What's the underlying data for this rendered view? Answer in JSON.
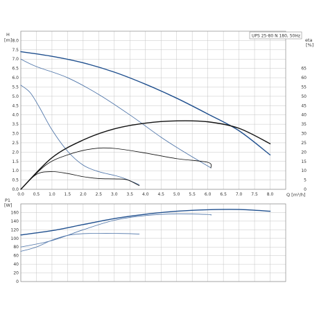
{
  "colors": {
    "blue_thick": "#1f4f8e",
    "blue_thin": "#4c73a8",
    "black": "#111111",
    "grid": "#c4c4c4",
    "frame": "#8a8a8a"
  },
  "chart_data": [
    {
      "type": "line",
      "title": "UPS 25-80 N 180, 50Hz",
      "ylabel_left": "H",
      "ylabel_left_unit": "[m]",
      "ylabel_right": "eta",
      "ylabel_right_unit": "[%]",
      "xlabel": "Q [m³/h]",
      "grid": true,
      "xlim": [
        0,
        8.5
      ],
      "ylim": [
        0,
        8.5
      ],
      "y2lim": [
        0,
        85
      ],
      "x_ticks": [
        "0.0",
        "0.5",
        "1.0",
        "1.5",
        "2.0",
        "2.5",
        "3.0",
        "3.5",
        "4.0",
        "4.5",
        "5.0",
        "5.5",
        "6.0",
        "6.5",
        "7.0",
        "7.5",
        "8.0"
      ],
      "y_ticks": [
        "0.0",
        "0.5",
        "1.0",
        "1.5",
        "2.0",
        "2.5",
        "3.0",
        "3.5",
        "4.0",
        "4.5",
        "5.0",
        "5.5",
        "6.0",
        "6.5",
        "7.0",
        "7.5",
        "8.0"
      ],
      "y2_ticks": [
        "0",
        "5",
        "10",
        "15",
        "20",
        "25",
        "30",
        "35",
        "40",
        "45",
        "50",
        "55",
        "60",
        "65"
      ],
      "series": [
        {
          "role": "head",
          "speed": 3,
          "color_key": "blue_thick",
          "width": 1.4,
          "points": [
            [
              0,
              7.4
            ],
            [
              1,
              7.15
            ],
            [
              2,
              6.8
            ],
            [
              3,
              6.3
            ],
            [
              4,
              5.65
            ],
            [
              5,
              4.9
            ],
            [
              6,
              4.05
            ],
            [
              7,
              3.15
            ],
            [
              8,
              1.85
            ]
          ]
        },
        {
          "role": "head",
          "speed": 2,
          "color_key": "blue_thin",
          "width": 0.85,
          "points": [
            [
              0,
              7.0
            ],
            [
              0.5,
              6.6
            ],
            [
              1.5,
              6.0
            ],
            [
              2.5,
              5.1
            ],
            [
              3.5,
              4.0
            ],
            [
              4.5,
              2.8
            ],
            [
              5.2,
              2.05
            ],
            [
              6.1,
              1.15
            ]
          ]
        },
        {
          "role": "head",
          "speed": 1,
          "color_key": "blue_thin",
          "width": 0.85,
          "points": [
            [
              0,
              5.6
            ],
            [
              0.3,
              5.2
            ],
            [
              0.6,
              4.4
            ],
            [
              1.0,
              3.2
            ],
            [
              1.5,
              2.05
            ],
            [
              2.0,
              1.3
            ],
            [
              2.5,
              0.95
            ],
            [
              3.0,
              0.75
            ],
            [
              3.3,
              0.6
            ],
            [
              3.8,
              0.25
            ]
          ]
        },
        {
          "role": "efficiency",
          "speed": 3,
          "color_key": "black",
          "width": 1.4,
          "points": [
            [
              0,
              0
            ],
            [
              1,
              17
            ],
            [
              2,
              26.5
            ],
            [
              3,
              32.5
            ],
            [
              4,
              35.6
            ],
            [
              5,
              36.8
            ],
            [
              6,
              36.3
            ],
            [
              7,
              32.8
            ],
            [
              8,
              24.5
            ]
          ]
        },
        {
          "role": "efficiency",
          "speed": 2,
          "color_key": "black",
          "width": 0.85,
          "points": [
            [
              0,
              0
            ],
            [
              0.8,
              13
            ],
            [
              1.5,
              18.5
            ],
            [
              2.3,
              21.8
            ],
            [
              3.0,
              22
            ],
            [
              4.0,
              19.5
            ],
            [
              5.0,
              16.5
            ],
            [
              6.0,
              14.5
            ],
            [
              6.1,
              11.5
            ]
          ]
        },
        {
          "role": "efficiency",
          "speed": 1,
          "color_key": "black",
          "width": 0.85,
          "points": [
            [
              0,
              0
            ],
            [
              0.5,
              8
            ],
            [
              1.0,
              9.5
            ],
            [
              1.5,
              8.5
            ],
            [
              2.0,
              6.8
            ],
            [
              2.5,
              5.8
            ],
            [
              3.0,
              5.6
            ],
            [
              3.4,
              5.2
            ],
            [
              3.8,
              2
            ]
          ]
        }
      ]
    },
    {
      "type": "line",
      "ylabel": "P1",
      "ylabel_unit": "[W]",
      "grid": true,
      "xlim": [
        0,
        8.5
      ],
      "ylim": [
        0,
        180
      ],
      "y_ticks": [
        "0",
        "20",
        "40",
        "60",
        "80",
        "100",
        "120",
        "140",
        "160"
      ],
      "series": [
        {
          "role": "power",
          "speed": 3,
          "color_key": "blue_thick",
          "width": 1.4,
          "points": [
            [
              0,
              108
            ],
            [
              1,
              118
            ],
            [
              2,
              132
            ],
            [
              3,
              146
            ],
            [
              4,
              156
            ],
            [
              5,
              163
            ],
            [
              6,
              166.5
            ],
            [
              7,
              167
            ],
            [
              8,
              163
            ]
          ]
        },
        {
          "role": "power",
          "speed": 2,
          "color_key": "blue_thin",
          "width": 0.85,
          "points": [
            [
              0,
              80
            ],
            [
              1,
              95
            ],
            [
              2,
              120
            ],
            [
              3,
              142
            ],
            [
              4,
              153
            ],
            [
              5,
              157
            ],
            [
              6,
              155.5
            ],
            [
              6.1,
              154
            ]
          ]
        },
        {
          "role": "power",
          "speed": 1,
          "color_key": "blue_thin",
          "width": 0.85,
          "points": [
            [
              0,
              70
            ],
            [
              0.5,
              80
            ],
            [
              1.0,
              96
            ],
            [
              1.5,
              107
            ],
            [
              2.0,
              111
            ],
            [
              2.5,
              111.5
            ],
            [
              3.0,
              111.5
            ],
            [
              3.5,
              111
            ],
            [
              3.8,
              110
            ]
          ]
        }
      ]
    }
  ]
}
